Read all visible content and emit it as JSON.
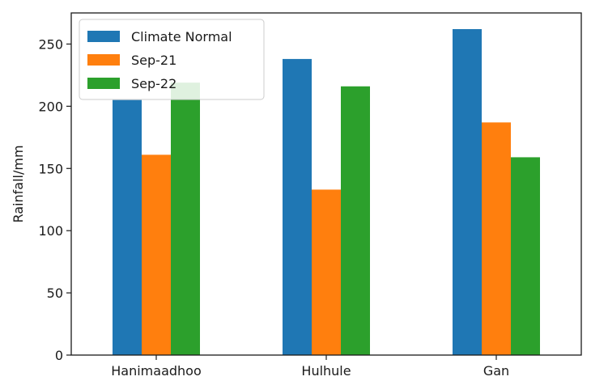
{
  "chart_data": {
    "type": "bar",
    "title": "",
    "xlabel": "",
    "ylabel": "Rainfall/mm",
    "categories": [
      "Hanimaadhoo",
      "Hulhule",
      "Gan"
    ],
    "series": [
      {
        "name": "Climate Normal",
        "color": "#1f77b4",
        "values": [
          205,
          238,
          262
        ]
      },
      {
        "name": "Sep-21",
        "color": "#ff7f0e",
        "values": [
          161,
          133,
          187
        ]
      },
      {
        "name": "Sep-22",
        "color": "#2ca02c",
        "values": [
          219,
          216,
          159
        ]
      }
    ],
    "ylim": [
      0,
      275
    ],
    "yticks": [
      0,
      50,
      100,
      150,
      200,
      250
    ],
    "grid": false,
    "legend_position": "top-left"
  }
}
